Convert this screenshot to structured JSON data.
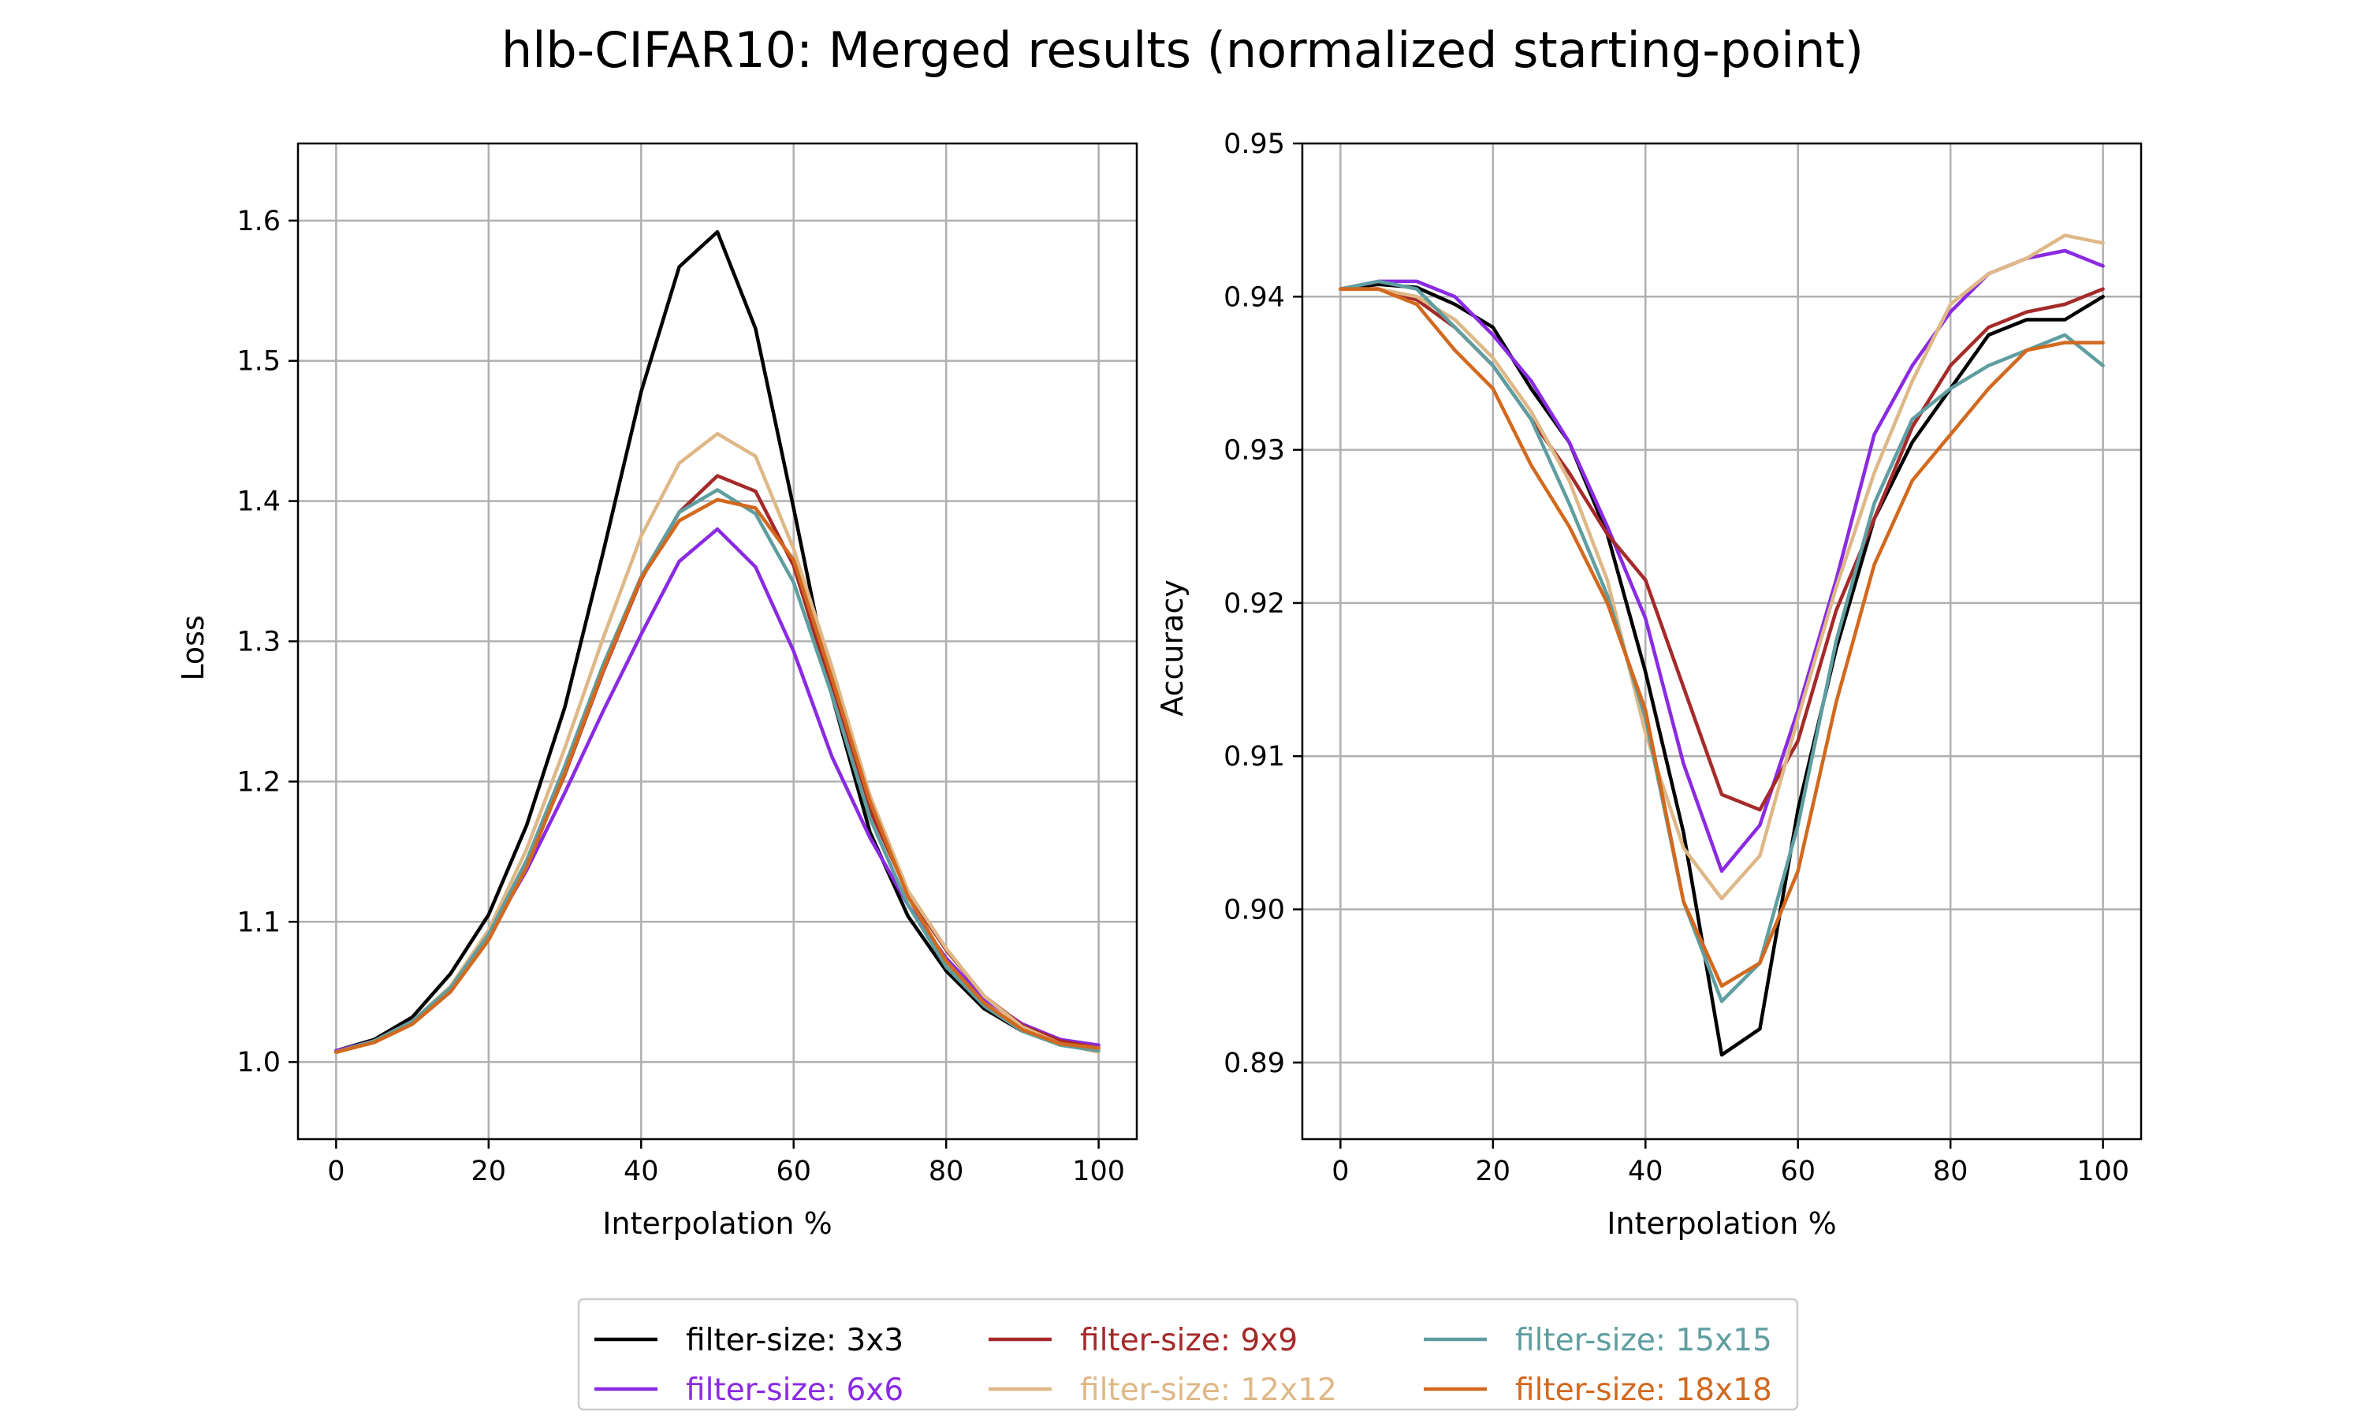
{
  "chart_data": [
    {
      "type": "line",
      "title": "",
      "xlabel": "Interpolation %",
      "ylabel": "Loss",
      "xlim": [
        -5,
        105
      ],
      "ylim": [
        0.945,
        1.655
      ],
      "xticks": [
        0,
        20,
        40,
        60,
        80,
        100
      ],
      "xtick_labels": [
        "0",
        "20",
        "40",
        "60",
        "80",
        "100"
      ],
      "yticks": [
        1.0,
        1.1,
        1.2,
        1.3,
        1.4,
        1.5,
        1.6
      ],
      "ytick_labels": [
        "1.0",
        "1.1",
        "1.2",
        "1.3",
        "1.4",
        "1.5",
        "1.6"
      ],
      "grid": true,
      "x": [
        0,
        5,
        10,
        15,
        20,
        25,
        30,
        35,
        40,
        45,
        50,
        55,
        60,
        65,
        70,
        75,
        80,
        85,
        90,
        95,
        100
      ],
      "series": [
        {
          "name": "filter-size: 3x3",
          "color": "#000000",
          "values": [
            1.008,
            1.016,
            1.032,
            1.063,
            1.105,
            1.169,
            1.253,
            1.363,
            1.478,
            1.567,
            1.592,
            1.523,
            1.395,
            1.262,
            1.164,
            1.104,
            1.065,
            1.038,
            1.022,
            1.015,
            1.012
          ]
        },
        {
          "name": "filter-size: 6x6",
          "color": "#8a2be2",
          "values": [
            1.008,
            1.015,
            1.029,
            1.052,
            1.09,
            1.137,
            1.192,
            1.25,
            1.305,
            1.357,
            1.38,
            1.353,
            1.293,
            1.218,
            1.16,
            1.112,
            1.074,
            1.045,
            1.027,
            1.016,
            1.012
          ]
        },
        {
          "name": "filter-size: 9x9",
          "color": "#a52a2a",
          "values": [
            1.007,
            1.015,
            1.028,
            1.052,
            1.09,
            1.141,
            1.205,
            1.278,
            1.344,
            1.392,
            1.418,
            1.407,
            1.354,
            1.266,
            1.18,
            1.12,
            1.08,
            1.047,
            1.026,
            1.015,
            1.01
          ]
        },
        {
          "name": "filter-size: 12x12",
          "color": "#deb887",
          "values": [
            1.007,
            1.015,
            1.029,
            1.054,
            1.094,
            1.152,
            1.224,
            1.302,
            1.375,
            1.427,
            1.448,
            1.432,
            1.366,
            1.282,
            1.19,
            1.122,
            1.081,
            1.047,
            1.025,
            1.013,
            1.007
          ]
        },
        {
          "name": "filter-size: 15x15",
          "color": "#5f9ea0",
          "values": [
            1.007,
            1.015,
            1.029,
            1.053,
            1.091,
            1.144,
            1.211,
            1.283,
            1.346,
            1.392,
            1.408,
            1.391,
            1.342,
            1.262,
            1.174,
            1.112,
            1.068,
            1.04,
            1.022,
            1.012,
            1.008
          ]
        },
        {
          "name": "filter-size: 18x18",
          "color": "#d2691e",
          "values": [
            1.007,
            1.014,
            1.027,
            1.05,
            1.087,
            1.139,
            1.206,
            1.279,
            1.345,
            1.386,
            1.401,
            1.395,
            1.358,
            1.274,
            1.186,
            1.118,
            1.072,
            1.042,
            1.023,
            1.013,
            1.01
          ]
        }
      ]
    },
    {
      "type": "line",
      "title": "",
      "xlabel": "Interpolation %",
      "ylabel": "Accuracy",
      "xlim": [
        -5,
        105
      ],
      "ylim": [
        0.885,
        0.95
      ],
      "xticks": [
        0,
        20,
        40,
        60,
        80,
        100
      ],
      "xtick_labels": [
        "0",
        "20",
        "40",
        "60",
        "80",
        "100"
      ],
      "yticks": [
        0.89,
        0.9,
        0.91,
        0.92,
        0.93,
        0.94,
        0.95
      ],
      "ytick_labels": [
        "0.89",
        "0.90",
        "0.91",
        "0.92",
        "0.93",
        "0.94",
        "0.95"
      ],
      "grid": true,
      "x": [
        0,
        5,
        10,
        15,
        20,
        25,
        30,
        35,
        40,
        45,
        50,
        55,
        60,
        65,
        70,
        75,
        80,
        85,
        90,
        95,
        100
      ],
      "series": [
        {
          "name": "filter-size: 3x3",
          "color": "#000000",
          "values": [
            0.9405,
            0.9408,
            0.9406,
            0.9395,
            0.938,
            0.934,
            0.9305,
            0.9245,
            0.9155,
            0.905,
            0.8905,
            0.8922,
            0.9065,
            0.917,
            0.9255,
            0.9305,
            0.934,
            0.9375,
            0.9385,
            0.9385,
            0.94
          ]
        },
        {
          "name": "filter-size: 6x6",
          "color": "#8a2be2",
          "values": [
            0.9405,
            0.941,
            0.941,
            0.94,
            0.9375,
            0.9345,
            0.9305,
            0.925,
            0.919,
            0.9095,
            0.9025,
            0.9055,
            0.913,
            0.9215,
            0.931,
            0.9355,
            0.939,
            0.9415,
            0.9425,
            0.943,
            0.942
          ]
        },
        {
          "name": "filter-size: 9x9",
          "color": "#a52a2a",
          "values": [
            0.9405,
            0.9405,
            0.9398,
            0.938,
            0.9355,
            0.932,
            0.9285,
            0.9245,
            0.9215,
            0.9145,
            0.9075,
            0.9065,
            0.911,
            0.9195,
            0.9255,
            0.9315,
            0.9355,
            0.938,
            0.939,
            0.9395,
            0.9405
          ]
        },
        {
          "name": "filter-size: 12x12",
          "color": "#deb887",
          "values": [
            0.9405,
            0.9405,
            0.94,
            0.9385,
            0.936,
            0.9325,
            0.928,
            0.9215,
            0.9115,
            0.904,
            0.9007,
            0.9035,
            0.9125,
            0.921,
            0.9285,
            0.9345,
            0.9395,
            0.9415,
            0.9425,
            0.944,
            0.9435
          ]
        },
        {
          "name": "filter-size: 15x15",
          "color": "#5f9ea0",
          "values": [
            0.9405,
            0.941,
            0.9405,
            0.938,
            0.9355,
            0.932,
            0.9265,
            0.9205,
            0.9125,
            0.9005,
            0.894,
            0.8965,
            0.9055,
            0.9175,
            0.9265,
            0.932,
            0.934,
            0.9355,
            0.9365,
            0.9375,
            0.9355
          ]
        },
        {
          "name": "filter-size: 18x18",
          "color": "#d2691e",
          "values": [
            0.9405,
            0.9405,
            0.9395,
            0.9365,
            0.934,
            0.929,
            0.925,
            0.92,
            0.913,
            0.9005,
            0.895,
            0.8965,
            0.9025,
            0.9135,
            0.9225,
            0.928,
            0.931,
            0.934,
            0.9365,
            0.937,
            0.937
          ]
        }
      ]
    }
  ],
  "figure": {
    "suptitle": "hlb-CIFAR10: Merged results (normalized starting-point)",
    "legend": {
      "placement": "bottom-center",
      "columns": 3,
      "items": [
        "filter-size: 3x3",
        "filter-size: 6x6",
        "filter-size: 9x9",
        "filter-size: 12x12",
        "filter-size: 15x15",
        "filter-size: 18x18"
      ],
      "text_colors": [
        "#000000",
        "#8a2be2",
        "#a52a2a",
        "#deb887",
        "#5f9ea0",
        "#d2691e"
      ]
    }
  }
}
